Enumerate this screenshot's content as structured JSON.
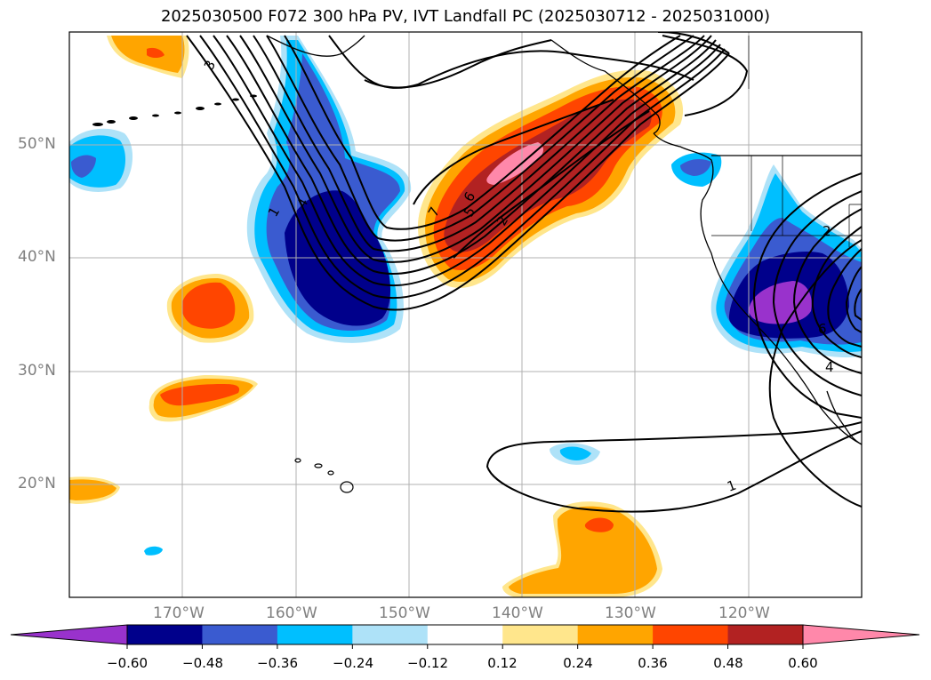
{
  "title": "2025030500 F072 300 hPa PV, IVT Landfall PC (2025030712 - 2025031000)",
  "map": {
    "projection": "cylindrical",
    "lon_range": [
      -180,
      -110
    ],
    "lat_range": [
      10,
      60
    ],
    "lat_labels": [
      "50°N",
      "40°N",
      "30°N",
      "20°N"
    ],
    "lon_labels": [
      "170°W",
      "160°W",
      "150°W",
      "140°W",
      "130°W",
      "120°W"
    ],
    "grid": true,
    "label_color": "#7f7f7f"
  },
  "contour_labels": [
    "3",
    "1",
    "4",
    "7",
    "5",
    "6",
    "2",
    "1",
    "2",
    "6",
    "4"
  ],
  "colorbar": {
    "ticks": [
      "−0.60",
      "−0.48",
      "−0.36",
      "−0.24",
      "−0.12",
      "0.12",
      "0.24",
      "0.36",
      "0.48",
      "0.60"
    ],
    "colors": [
      "#9932cc",
      "#00008b",
      "#3a5bd0",
      "#00bfff",
      "#aee2f8",
      "#ffffff",
      "#ffe68c",
      "#ffa500",
      "#ff4500",
      "#b22222",
      "#ff88aa"
    ],
    "extend": "both"
  }
}
